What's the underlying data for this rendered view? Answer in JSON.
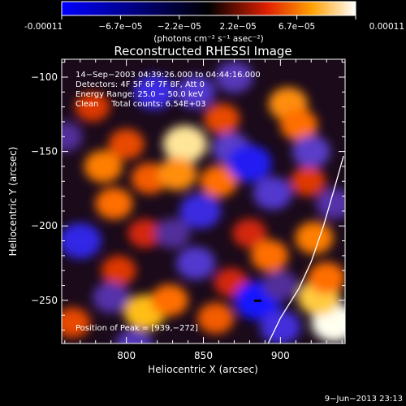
{
  "chart_data": {
    "type": "heatmap",
    "title": "Reconstructed RHESSI Image",
    "xlabel": "Heliocentric X (arcsec)",
    "ylabel": "Heliocentric Y (arcsec)",
    "xlim": [
      758,
      942
    ],
    "ylim": [
      -279,
      -88
    ],
    "xticks": [
      800,
      850,
      900
    ],
    "yticks": [
      -100,
      -150,
      -200,
      -250
    ],
    "colorbar": {
      "label": "(photons cm⁻² s⁻¹ asec⁻²)",
      "min": -0.00011,
      "max": 0.00011,
      "tick_labels": [
        "-0.00011",
        "−6.7e−05",
        "−2.2e−05",
        "2.2e−05",
        "6.7e−05",
        "0.00011"
      ]
    },
    "annotations": [
      "14−Sep−2003 04:39:26.000 to 04:44:16.000",
      "Detectors: 4F 5F 6F 7F 8F, Att 0",
      "Energy Range: 25.0 − 50.0 keV",
      "Clean     Total counts: 6.54E+03",
      "Position of Peak = [939,−272]"
    ],
    "peak": [
      939,
      -272
    ],
    "blobs": [
      {
        "x": 785,
        "y": -160,
        "v": 0.55
      },
      {
        "x": 792,
        "y": -185,
        "v": 0.5
      },
      {
        "x": 800,
        "y": -145,
        "v": 0.4
      },
      {
        "x": 778,
        "y": -120,
        "v": 0.35
      },
      {
        "x": 815,
        "y": -168,
        "v": 0.45
      },
      {
        "x": 838,
        "y": -145,
        "v": 0.9
      },
      {
        "x": 833,
        "y": -165,
        "v": 0.6
      },
      {
        "x": 860,
        "y": -170,
        "v": 0.5
      },
      {
        "x": 862,
        "y": -128,
        "v": 0.4
      },
      {
        "x": 905,
        "y": -118,
        "v": 0.6
      },
      {
        "x": 912,
        "y": -132,
        "v": 0.5
      },
      {
        "x": 880,
        "y": -205,
        "v": 0.3
      },
      {
        "x": 893,
        "y": -220,
        "v": 0.5
      },
      {
        "x": 918,
        "y": -170,
        "v": 0.35
      },
      {
        "x": 922,
        "y": -208,
        "v": 0.55
      },
      {
        "x": 812,
        "y": -205,
        "v": 0.3
      },
      {
        "x": 795,
        "y": -230,
        "v": 0.35
      },
      {
        "x": 812,
        "y": -258,
        "v": 0.75
      },
      {
        "x": 828,
        "y": -250,
        "v": 0.5
      },
      {
        "x": 858,
        "y": -262,
        "v": 0.45
      },
      {
        "x": 868,
        "y": -238,
        "v": 0.3
      },
      {
        "x": 765,
        "y": -265,
        "v": 0.4
      },
      {
        "x": 935,
        "y": -265,
        "v": 1.0
      },
      {
        "x": 925,
        "y": -248,
        "v": 0.8
      },
      {
        "x": 930,
        "y": -235,
        "v": 0.5
      },
      {
        "x": 770,
        "y": -210,
        "v": -0.8
      },
      {
        "x": 818,
        "y": -110,
        "v": -0.75
      },
      {
        "x": 845,
        "y": -110,
        "v": -0.6
      },
      {
        "x": 848,
        "y": -190,
        "v": -0.75
      },
      {
        "x": 845,
        "y": -225,
        "v": -0.6
      },
      {
        "x": 868,
        "y": -148,
        "v": -0.55
      },
      {
        "x": 880,
        "y": -158,
        "v": -0.9
      },
      {
        "x": 895,
        "y": -178,
        "v": -0.6
      },
      {
        "x": 885,
        "y": -250,
        "v": -1.0
      },
      {
        "x": 900,
        "y": -268,
        "v": -0.7
      },
      {
        "x": 805,
        "y": -280,
        "v": -0.5
      },
      {
        "x": 790,
        "y": -248,
        "v": -0.45
      },
      {
        "x": 920,
        "y": -150,
        "v": -0.55
      },
      {
        "x": 935,
        "y": -185,
        "v": -0.45
      },
      {
        "x": 870,
        "y": -100,
        "v": -0.5
      },
      {
        "x": 760,
        "y": -140,
        "v": -0.4
      },
      {
        "x": 830,
        "y": -205,
        "v": -0.4
      },
      {
        "x": 900,
        "y": -240,
        "v": -0.4
      }
    ],
    "limb_curve": [
      [
        941,
        -153
      ],
      [
        935,
        -175
      ],
      [
        928,
        -200
      ],
      [
        920,
        -224
      ],
      [
        912,
        -242
      ],
      [
        900,
        -262
      ],
      [
        892,
        -279
      ]
    ],
    "colors": {
      "background": "#000000",
      "text": "#ffffff",
      "low": "#0000ff",
      "mid": "#000000",
      "high": "#ffffff"
    }
  },
  "footer": {
    "timestamp": "9−Jun−2013 23:13"
  }
}
